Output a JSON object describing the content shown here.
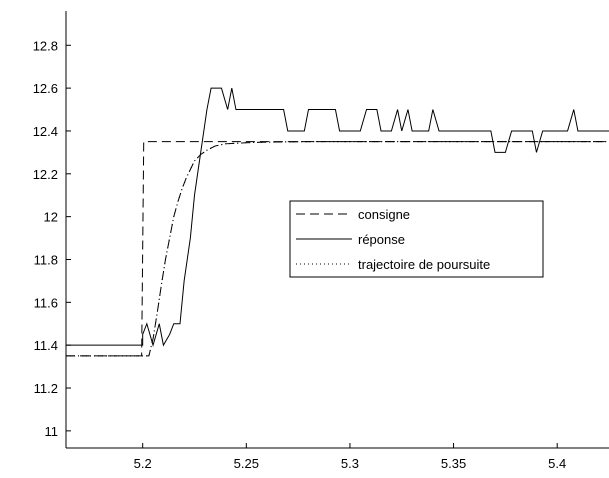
{
  "chart_data": {
    "type": "line",
    "title": "",
    "xlabel": "",
    "ylabel": "",
    "xlim": [
      5.163,
      5.425
    ],
    "ylim": [
      10.92,
      12.96
    ],
    "grid": false,
    "legend_position": "center-right",
    "xticks": [
      5.2,
      5.25,
      5.3,
      5.35,
      5.4
    ],
    "xtick_labels": [
      "5.2",
      "5.25",
      "5.3",
      "5.35",
      "5.4"
    ],
    "yticks": [
      11,
      11.2,
      11.4,
      11.6,
      11.8,
      12,
      12.2,
      12.4,
      12.6,
      12.8
    ],
    "ytick_labels": [
      "11",
      "11.2",
      "11.4",
      "11.6",
      "11.8",
      "12",
      "12.2",
      "12.4",
      "12.6",
      "12.8"
    ],
    "series": [
      {
        "name": "consigne",
        "style": "dashed",
        "color": "#000000",
        "x": [
          5.163,
          5.1995,
          5.2005,
          5.425
        ],
        "y": [
          11.35,
          11.35,
          12.35,
          12.35
        ]
      },
      {
        "name": "réponse",
        "style": "solid",
        "color": "#000000",
        "x": [
          5.163,
          5.2,
          5.2,
          5.202,
          5.205,
          5.208,
          5.21,
          5.213,
          5.215,
          5.218,
          5.22,
          5.223,
          5.225,
          5.228,
          5.231,
          5.233,
          5.235,
          5.238,
          5.241,
          5.243,
          5.245,
          5.248,
          5.25,
          5.253,
          5.255,
          5.258,
          5.26,
          5.263,
          5.265,
          5.268,
          5.27,
          5.273,
          5.275,
          5.278,
          5.28,
          5.283,
          5.285,
          5.288,
          5.29,
          5.293,
          5.295,
          5.298,
          5.3,
          5.303,
          5.305,
          5.308,
          5.31,
          5.313,
          5.315,
          5.318,
          5.32,
          5.323,
          5.325,
          5.328,
          5.33,
          5.333,
          5.335,
          5.338,
          5.34,
          5.343,
          5.345,
          5.348,
          5.35,
          5.353,
          5.355,
          5.358,
          5.36,
          5.363,
          5.365,
          5.368,
          5.37,
          5.373,
          5.375,
          5.378,
          5.38,
          5.383,
          5.385,
          5.388,
          5.39,
          5.393,
          5.395,
          5.398,
          5.4,
          5.403,
          5.405,
          5.408,
          5.41,
          5.413,
          5.415,
          5.418,
          5.42,
          5.425
        ],
        "y": [
          11.4,
          11.4,
          11.45,
          11.5,
          11.4,
          11.5,
          11.4,
          11.45,
          11.5,
          11.5,
          11.7,
          11.9,
          12.1,
          12.3,
          12.5,
          12.6,
          12.6,
          12.6,
          12.5,
          12.6,
          12.5,
          12.5,
          12.5,
          12.5,
          12.5,
          12.5,
          12.5,
          12.5,
          12.5,
          12.5,
          12.4,
          12.4,
          12.4,
          12.4,
          12.5,
          12.5,
          12.5,
          12.5,
          12.5,
          12.5,
          12.4,
          12.4,
          12.4,
          12.4,
          12.4,
          12.5,
          12.5,
          12.5,
          12.4,
          12.4,
          12.4,
          12.5,
          12.4,
          12.5,
          12.4,
          12.4,
          12.4,
          12.4,
          12.5,
          12.4,
          12.4,
          12.4,
          12.4,
          12.4,
          12.4,
          12.4,
          12.4,
          12.4,
          12.4,
          12.4,
          12.3,
          12.3,
          12.3,
          12.4,
          12.4,
          12.4,
          12.4,
          12.4,
          12.3,
          12.4,
          12.4,
          12.4,
          12.4,
          12.4,
          12.4,
          12.5,
          12.4,
          12.4,
          12.4,
          12.4,
          12.4,
          12.4
        ]
      },
      {
        "name": "trajectoire de poursuite",
        "style": "dotted",
        "color": "#000000",
        "x": [
          5.163,
          5.203,
          5.205,
          5.207,
          5.209,
          5.211,
          5.213,
          5.215,
          5.217,
          5.219,
          5.221,
          5.223,
          5.225,
          5.228,
          5.231,
          5.235,
          5.24,
          5.25,
          5.26,
          5.28,
          5.3,
          5.425
        ],
        "y": [
          11.35,
          11.35,
          11.43,
          11.55,
          11.68,
          11.8,
          11.9,
          12.0,
          12.07,
          12.13,
          12.18,
          12.22,
          12.26,
          12.29,
          12.31,
          12.33,
          12.34,
          12.345,
          12.348,
          12.35,
          12.35,
          12.35
        ]
      }
    ],
    "reference_line": {
      "style": "dashdot",
      "x": [
        5.163,
        5.203,
        5.205,
        5.207,
        5.209,
        5.211,
        5.213,
        5.215,
        5.217,
        5.219,
        5.221,
        5.223,
        5.225,
        5.228,
        5.231,
        5.235,
        5.24,
        5.25,
        5.26,
        5.28,
        5.3,
        5.425
      ],
      "y": [
        11.35,
        11.35,
        11.43,
        11.55,
        11.68,
        11.8,
        11.9,
        12.0,
        12.07,
        12.13,
        12.18,
        12.22,
        12.26,
        12.29,
        12.31,
        12.33,
        12.34,
        12.345,
        12.348,
        12.35,
        12.35,
        12.35
      ]
    }
  }
}
